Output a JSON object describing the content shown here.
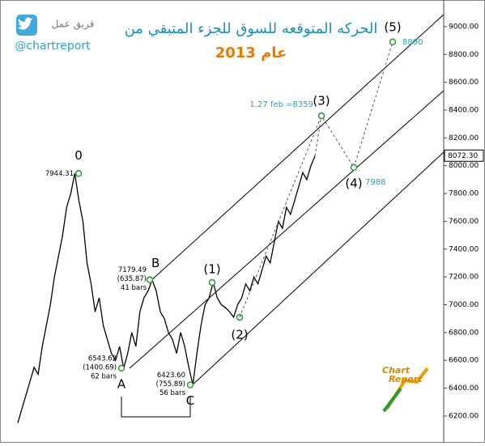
{
  "chart_data": {
    "type": "line",
    "title": "الحركه المتوقعه للسوق للجزء المتبقي من",
    "subtitle": "عام 2013",
    "brand": "فريق عمل",
    "handle": "@chartreport",
    "logo": [
      "Chart",
      "Report"
    ],
    "ylim": [
      6118,
      9145
    ],
    "yticks": [
      {
        "value": 6200,
        "label": "6200.00"
      },
      {
        "value": 6400,
        "label": "6400.00"
      },
      {
        "value": 6600,
        "label": "6600.00"
      },
      {
        "value": 6800,
        "label": "6800.00"
      },
      {
        "value": 7000,
        "label": "7000.00"
      },
      {
        "value": 7200,
        "label": "7200.00"
      },
      {
        "value": 7400,
        "label": "7400.00"
      },
      {
        "value": 7600,
        "label": "7600.00"
      },
      {
        "value": 7800,
        "label": "7800.00"
      },
      {
        "value": 8000,
        "label": "8000.00"
      },
      {
        "value": 8200,
        "label": "8200.00"
      },
      {
        "value": 8400,
        "label": "8400.00"
      },
      {
        "value": 8600,
        "label": "8600.00"
      },
      {
        "value": 8800,
        "label": "8800.00"
      },
      {
        "value": 9000,
        "label": "9000.00"
      }
    ],
    "last_price": {
      "value": 8072.3,
      "label": "8072.30"
    },
    "color": "#000000",
    "categories": [
      null,
      null,
      null,
      null,
      null,
      null,
      null,
      null,
      null,
      null,
      null,
      null,
      null,
      null,
      null,
      null,
      null,
      null,
      null,
      null,
      null,
      null,
      null,
      null,
      null,
      null,
      null,
      null,
      null,
      null,
      null,
      null,
      null,
      null,
      null,
      null,
      null,
      null,
      null,
      null,
      null,
      null,
      null,
      null,
      null,
      null,
      null,
      null,
      null,
      null,
      null,
      null,
      null,
      null,
      null,
      null,
      null,
      null,
      null,
      null,
      null,
      null,
      null,
      null,
      null,
      null,
      null,
      null,
      null,
      null,
      null,
      null,
      null,
      null
    ],
    "values": [
      6150,
      6250,
      6350,
      6450,
      6550,
      6500,
      6700,
      6850,
      7000,
      7200,
      7350,
      7500,
      7700,
      7800,
      7944,
      7750,
      7600,
      7300,
      7150,
      6950,
      7050,
      6850,
      6750,
      6650,
      6600,
      6700,
      6543,
      6650,
      6800,
      6700,
      6950,
      7050,
      7100,
      7179,
      7100,
      6950,
      6900,
      6800,
      6750,
      6650,
      6800,
      6700,
      6550,
      6424,
      6650,
      6850,
      7000,
      7050,
      7160,
      7050,
      7000,
      6980,
      6950,
      6910,
      7000,
      7050,
      7150,
      7100,
      7200,
      7150,
      7250,
      7350,
      7300,
      7450,
      7600,
      7550,
      7700,
      7650,
      7750,
      7850,
      7950,
      7900,
      8000,
      8070
    ],
    "waves": [
      {
        "label": "0",
        "value": 7944.31,
        "notes": [
          "7944.31"
        ]
      },
      {
        "label": "A",
        "value": 6543.62,
        "notes": [
          "6543.62",
          "(1400.69)",
          "62 bars"
        ]
      },
      {
        "label": "B",
        "value": 7179.49,
        "notes": [
          "7179.49",
          "(635.87)",
          "41 bars"
        ]
      },
      {
        "label": "C",
        "value": 6423.6,
        "notes": [
          "6423.60",
          "(755.89)",
          "56 bars"
        ]
      },
      {
        "label": "(1)",
        "value": 7160
      },
      {
        "label": "(2)",
        "value": 6910
      }
    ],
    "projections": [
      {
        "label": "(3)",
        "value": 8359,
        "value_label": "1.27 feb =8359"
      },
      {
        "label": "(4)",
        "value": 7988
      },
      {
        "label": "(5)",
        "value": 8890
      }
    ]
  }
}
